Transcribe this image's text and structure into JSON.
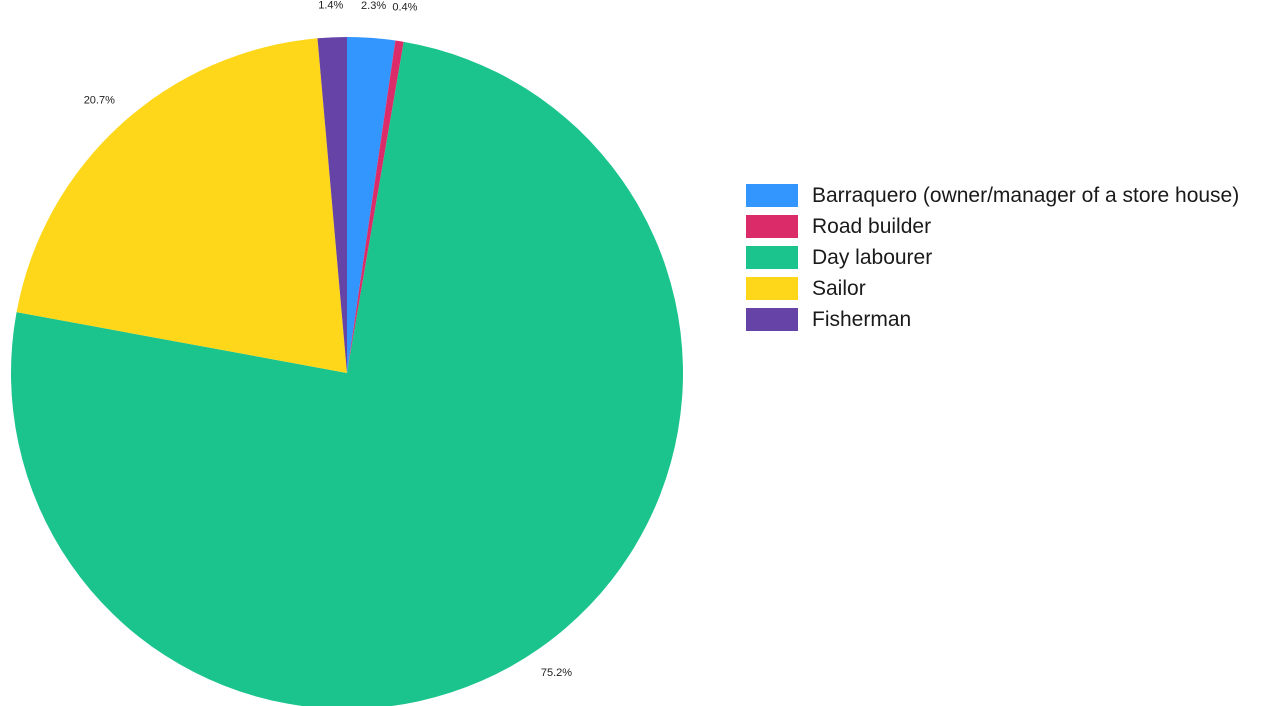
{
  "chart_data": {
    "type": "pie",
    "slices": [
      {
        "label": "Barraquero (owner/manager of a store house)",
        "value": 2.3,
        "display": "2.3%",
        "color": "#3396ff"
      },
      {
        "label": "Road builder",
        "value": 0.4,
        "display": "0.4%",
        "color": "#dc2b69"
      },
      {
        "label": "Day labourer",
        "value": 75.2,
        "display": "75.2%",
        "color": "#1bc48c"
      },
      {
        "label": "Sailor",
        "value": 20.7,
        "display": "20.7%",
        "color": "#fed71a"
      },
      {
        "label": "Fisherman",
        "value": 1.4,
        "display": "1.4%",
        "color": "#6643a7"
      }
    ],
    "start_angle": "12 o'clock",
    "direction": "clockwise",
    "legend_position": "right"
  }
}
